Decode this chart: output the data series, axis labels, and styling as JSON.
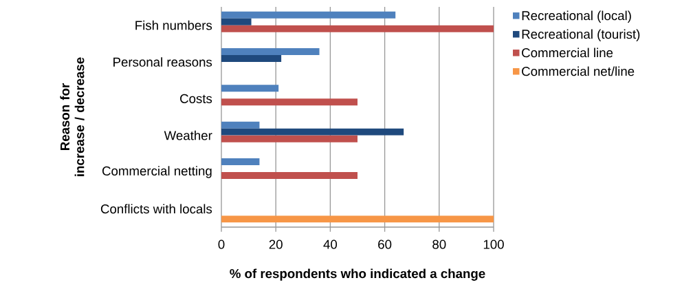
{
  "chart_data": {
    "type": "bar",
    "orientation": "horizontal",
    "xlabel": "% of respondents who indicated a change",
    "ylabel": "Reason for increase / decrease",
    "categories": [
      "Fish numbers",
      "Personal reasons",
      "Costs",
      "Weather",
      "Commercial netting",
      "Conflicts with locals"
    ],
    "series": [
      {
        "name": "Recreational (local)",
        "color": "#4f81bd",
        "values": [
          64,
          36,
          21,
          14,
          14,
          null
        ]
      },
      {
        "name": "Recreational (tourist)",
        "color": "#1f497d",
        "values": [
          11,
          22,
          null,
          67,
          null,
          null
        ]
      },
      {
        "name": "Commercial line",
        "color": "#c0504d",
        "values": [
          100,
          null,
          50,
          50,
          50,
          null
        ]
      },
      {
        "name": "Commercial net/line",
        "color": "#f79646",
        "values": [
          null,
          null,
          null,
          null,
          null,
          100
        ]
      }
    ],
    "xlim": [
      0,
      100
    ],
    "xticks": [
      0,
      20,
      40,
      60,
      80,
      100
    ],
    "grid": "x",
    "legend": "right"
  }
}
